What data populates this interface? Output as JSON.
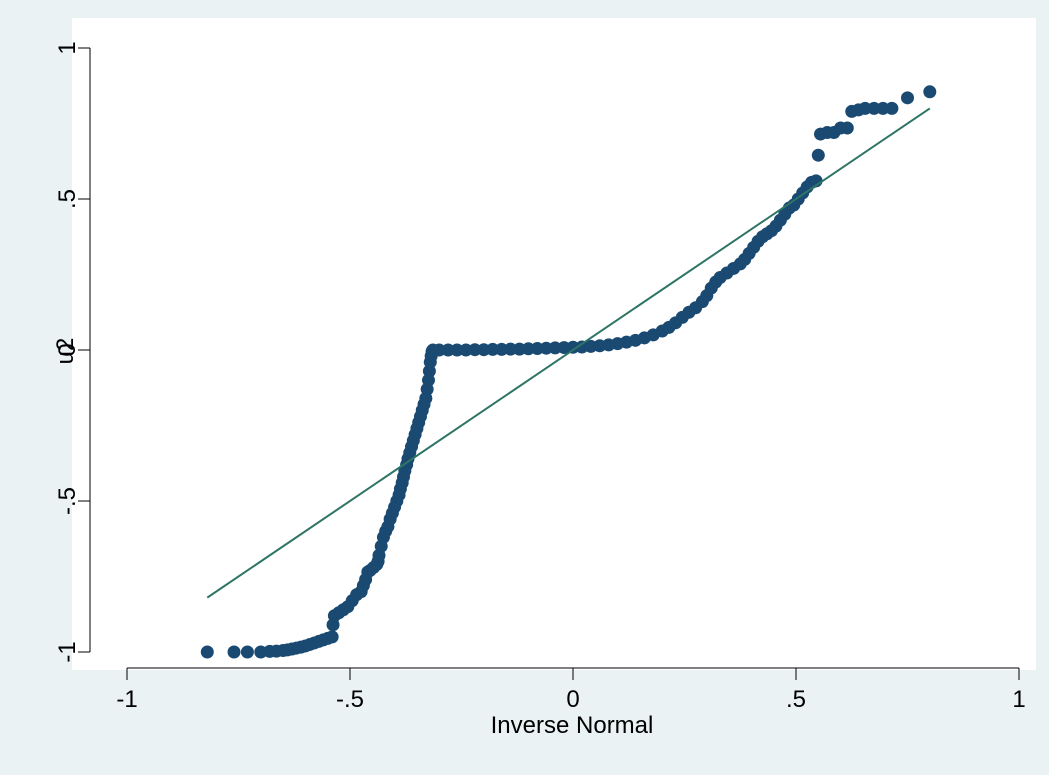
{
  "chart_data": {
    "type": "scatter",
    "xlabel": "Inverse Normal",
    "ylabel": "u2",
    "xlim": [
      -1,
      1
    ],
    "ylim": [
      -1,
      1
    ],
    "xticks": [
      -1,
      -0.5,
      0,
      0.5,
      1
    ],
    "xtick_labels": [
      "-1",
      "-.5",
      "0",
      ".5",
      "1"
    ],
    "yticks": [
      -1,
      -0.5,
      0,
      0.5,
      1
    ],
    "ytick_labels": [
      "-1",
      "-.5",
      "0",
      ".5",
      "1"
    ],
    "grid": false,
    "legend": "none",
    "colors": {
      "marker": "#1a4a72",
      "line": "#2e7565",
      "plot_bg": "#ffffff",
      "figure_bg": "#eaf2f3"
    },
    "series": [
      {
        "type": "scatter",
        "points": [
          [
            -0.82,
            -1.0
          ],
          [
            -0.76,
            -1.0
          ],
          [
            -0.73,
            -1.0
          ],
          [
            -0.7,
            -1.0
          ],
          [
            -0.68,
            -0.998
          ],
          [
            -0.665,
            -0.997
          ],
          [
            -0.65,
            -0.995
          ],
          [
            -0.64,
            -0.993
          ],
          [
            -0.63,
            -0.99
          ],
          [
            -0.62,
            -0.987
          ],
          [
            -0.61,
            -0.984
          ],
          [
            -0.6,
            -0.98
          ],
          [
            -0.59,
            -0.975
          ],
          [
            -0.58,
            -0.97
          ],
          [
            -0.57,
            -0.965
          ],
          [
            -0.56,
            -0.96
          ],
          [
            -0.55,
            -0.955
          ],
          [
            -0.54,
            -0.95
          ],
          [
            -0.538,
            -0.91
          ],
          [
            -0.535,
            -0.88
          ],
          [
            -0.525,
            -0.87
          ],
          [
            -0.515,
            -0.86
          ],
          [
            -0.505,
            -0.85
          ],
          [
            -0.495,
            -0.83
          ],
          [
            -0.485,
            -0.81
          ],
          [
            -0.475,
            -0.8
          ],
          [
            -0.47,
            -0.78
          ],
          [
            -0.465,
            -0.76
          ],
          [
            -0.46,
            -0.735
          ],
          [
            -0.455,
            -0.73
          ],
          [
            -0.447,
            -0.72
          ],
          [
            -0.44,
            -0.71
          ],
          [
            -0.437,
            -0.7
          ],
          [
            -0.435,
            -0.68
          ],
          [
            -0.43,
            -0.65
          ],
          [
            -0.425,
            -0.62
          ],
          [
            -0.42,
            -0.6
          ],
          [
            -0.415,
            -0.585
          ],
          [
            -0.41,
            -0.56
          ],
          [
            -0.405,
            -0.54
          ],
          [
            -0.4,
            -0.52
          ],
          [
            -0.395,
            -0.5
          ],
          [
            -0.39,
            -0.48
          ],
          [
            -0.387,
            -0.46
          ],
          [
            -0.383,
            -0.44
          ],
          [
            -0.38,
            -0.42
          ],
          [
            -0.377,
            -0.4
          ],
          [
            -0.373,
            -0.38
          ],
          [
            -0.37,
            -0.36
          ],
          [
            -0.366,
            -0.34
          ],
          [
            -0.362,
            -0.32
          ],
          [
            -0.358,
            -0.3
          ],
          [
            -0.354,
            -0.28
          ],
          [
            -0.35,
            -0.26
          ],
          [
            -0.346,
            -0.24
          ],
          [
            -0.342,
            -0.22
          ],
          [
            -0.338,
            -0.2
          ],
          [
            -0.334,
            -0.18
          ],
          [
            -0.33,
            -0.16
          ],
          [
            -0.327,
            -0.13
          ],
          [
            -0.324,
            -0.1
          ],
          [
            -0.322,
            -0.07
          ],
          [
            -0.32,
            -0.04
          ],
          [
            -0.318,
            -0.02
          ],
          [
            -0.316,
            -0.005
          ],
          [
            -0.314,
            0.0
          ],
          [
            -0.3,
            0.0
          ],
          [
            -0.28,
            0.0
          ],
          [
            -0.26,
            0.0
          ],
          [
            -0.24,
            0.0
          ],
          [
            -0.22,
            0.001
          ],
          [
            -0.2,
            0.001
          ],
          [
            -0.18,
            0.002
          ],
          [
            -0.16,
            0.002
          ],
          [
            -0.14,
            0.003
          ],
          [
            -0.12,
            0.003
          ],
          [
            -0.1,
            0.004
          ],
          [
            -0.08,
            0.005
          ],
          [
            -0.06,
            0.006
          ],
          [
            -0.04,
            0.007
          ],
          [
            -0.02,
            0.008
          ],
          [
            0.0,
            0.009
          ],
          [
            0.02,
            0.01
          ],
          [
            0.04,
            0.012
          ],
          [
            0.06,
            0.014
          ],
          [
            0.08,
            0.017
          ],
          [
            0.1,
            0.021
          ],
          [
            0.12,
            0.026
          ],
          [
            0.14,
            0.032
          ],
          [
            0.16,
            0.04
          ],
          [
            0.18,
            0.05
          ],
          [
            0.2,
            0.063
          ],
          [
            0.215,
            0.075
          ],
          [
            0.23,
            0.09
          ],
          [
            0.245,
            0.108
          ],
          [
            0.26,
            0.125
          ],
          [
            0.275,
            0.14
          ],
          [
            0.29,
            0.16
          ],
          [
            0.3,
            0.18
          ],
          [
            0.31,
            0.205
          ],
          [
            0.32,
            0.225
          ],
          [
            0.33,
            0.24
          ],
          [
            0.345,
            0.255
          ],
          [
            0.36,
            0.27
          ],
          [
            0.375,
            0.285
          ],
          [
            0.385,
            0.3
          ],
          [
            0.395,
            0.32
          ],
          [
            0.405,
            0.34
          ],
          [
            0.415,
            0.36
          ],
          [
            0.425,
            0.375
          ],
          [
            0.435,
            0.385
          ],
          [
            0.445,
            0.395
          ],
          [
            0.455,
            0.41
          ],
          [
            0.465,
            0.43
          ],
          [
            0.475,
            0.45
          ],
          [
            0.485,
            0.47
          ],
          [
            0.495,
            0.48
          ],
          [
            0.505,
            0.5
          ],
          [
            0.515,
            0.52
          ],
          [
            0.525,
            0.54
          ],
          [
            0.535,
            0.555
          ],
          [
            0.545,
            0.56
          ],
          [
            0.55,
            0.645
          ],
          [
            0.555,
            0.715
          ],
          [
            0.57,
            0.72
          ],
          [
            0.585,
            0.72
          ],
          [
            0.6,
            0.735
          ],
          [
            0.615,
            0.735
          ],
          [
            0.625,
            0.79
          ],
          [
            0.64,
            0.795
          ],
          [
            0.655,
            0.8
          ],
          [
            0.675,
            0.8
          ],
          [
            0.695,
            0.8
          ],
          [
            0.715,
            0.8
          ],
          [
            0.75,
            0.835
          ],
          [
            0.8,
            0.855
          ]
        ]
      },
      {
        "type": "line",
        "points": [
          [
            -0.82,
            -0.82
          ],
          [
            0.8,
            0.8
          ]
        ]
      }
    ]
  }
}
